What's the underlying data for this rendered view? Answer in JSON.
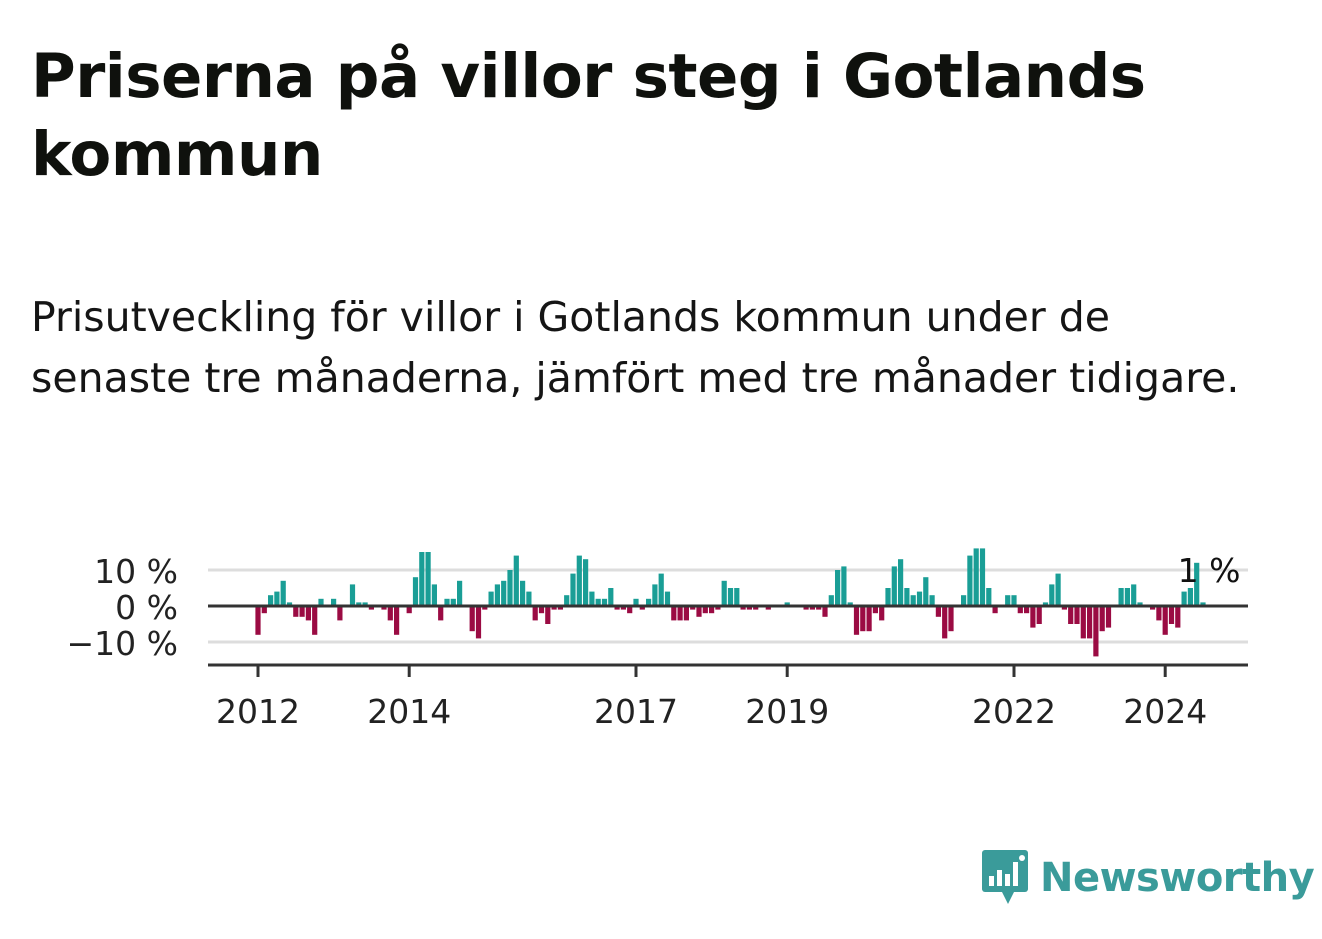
{
  "header": {
    "title": "Priserna på villor steg i Gotlands kommun",
    "subtitle": "Prisutveckling för villor i Gotlands kommun under de senaste tre månaderna, jämfört med tre månader tidigare."
  },
  "brand": {
    "name": "Newsworthy",
    "icon": "bar-chart-speech-bubble-icon",
    "color": "#3a9b9a"
  },
  "colors": {
    "positive": "#1a9e96",
    "negative": "#9b0b43",
    "grid": "#dddddd",
    "axis": "#333333"
  },
  "chart_data": {
    "type": "bar",
    "start": "2012-01",
    "ylim": [
      -17,
      17
    ],
    "grid": true,
    "y_ticks": [
      10,
      0,
      -10
    ],
    "y_tick_labels": [
      "10 %",
      "0 %",
      "−10 %"
    ],
    "x_ticks": [
      2012,
      2014,
      2017,
      2019,
      2022,
      2024
    ],
    "last_label": "1 %",
    "values": [
      -8,
      -2,
      3,
      4,
      7,
      1,
      -3,
      -3,
      -4,
      -8,
      2,
      0,
      2,
      -4,
      0,
      6,
      1,
      1,
      -1,
      0,
      -1,
      -4,
      -8,
      0,
      -2,
      8,
      15,
      15,
      6,
      -4,
      2,
      2,
      7,
      0,
      -7,
      -9,
      -1,
      4,
      6,
      7,
      10,
      14,
      7,
      4,
      -4,
      -2,
      -5,
      -1,
      -1,
      3,
      9,
      14,
      13,
      4,
      2,
      2,
      5,
      -1,
      -1,
      -2,
      2,
      -1,
      2,
      6,
      9,
      4,
      -4,
      -4,
      -4,
      -1,
      -3,
      -2,
      -2,
      -1,
      7,
      5,
      5,
      -1,
      -1,
      -1,
      0,
      -1,
      0,
      0,
      1,
      0,
      0,
      -1,
      -1,
      -1,
      -3,
      3,
      10,
      11,
      1,
      -8,
      -7,
      -7,
      -2,
      -4,
      5,
      11,
      13,
      5,
      3,
      4,
      8,
      3,
      -3,
      -9,
      -7,
      0,
      3,
      14,
      16,
      16,
      5,
      -2,
      0,
      3,
      3,
      -2,
      -2,
      -6,
      -5,
      1,
      6,
      9,
      -1,
      -5,
      -5,
      -9,
      -9,
      -14,
      -7,
      -6,
      0,
      5,
      5,
      6,
      1,
      0,
      -1,
      -4,
      -8,
      -5,
      -6,
      4,
      5,
      12,
      1
    ]
  }
}
